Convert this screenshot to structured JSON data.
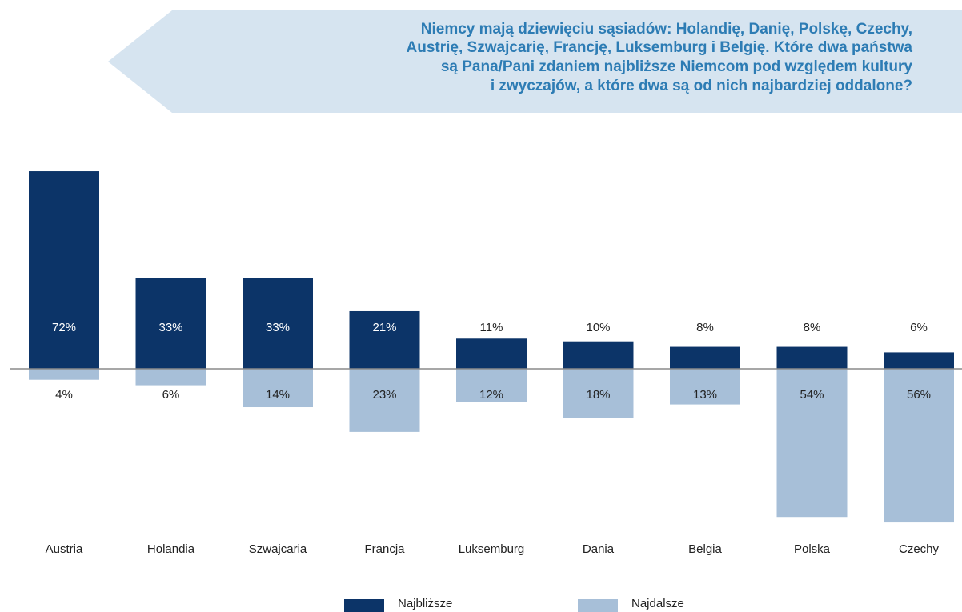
{
  "chart_data": {
    "type": "bar",
    "title": [
      "Niemcy mają dziewięciu sąsiadów: Holandię, Danię, Polskę, Czechy,",
      "Austrię, Szwajcarię, Francję, Luksemburg i Belgię. Które dwa państwa",
      "są Pana/Pani zdaniem najbliższe Niemcom pod względem kultury",
      "i zwyczajów, a które dwa są od nich najbardziej oddalone?"
    ],
    "categories": [
      "Austria",
      "Holandia",
      "Szwajcaria",
      "Francja",
      "Luksemburg",
      "Dania",
      "Belgia",
      "Polska",
      "Czechy"
    ],
    "series": [
      {
        "name": "Najbliższe",
        "color": "#0c3468",
        "direction": "up",
        "values": [
          72,
          33,
          33,
          21,
          11,
          10,
          8,
          8,
          6
        ],
        "value_labels": [
          "72%",
          "33%",
          "33%",
          "21%",
          "11%",
          "10%",
          "8%",
          "8%",
          "6%"
        ]
      },
      {
        "name": "Najdalsze",
        "color": "#a7bfd8",
        "direction": "down",
        "values": [
          4,
          6,
          14,
          23,
          12,
          18,
          13,
          54,
          56
        ],
        "value_labels": [
          "4%",
          "6%",
          "14%",
          "23%",
          "12%",
          "18%",
          "13%",
          "54%",
          "56%"
        ]
      }
    ]
  }
}
